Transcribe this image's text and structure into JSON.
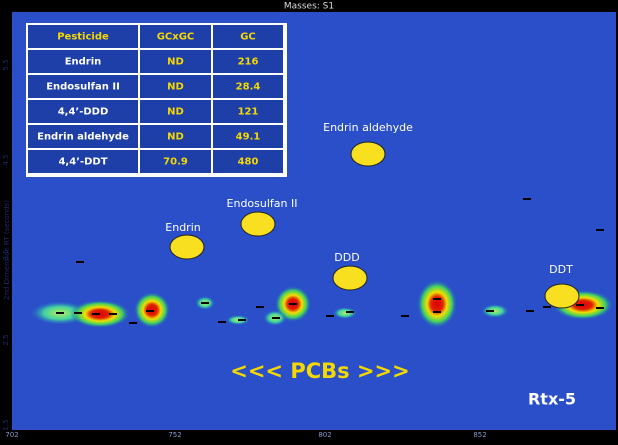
{
  "header": {
    "title": "Masses: S1"
  },
  "table": {
    "columns": [
      "Pesticide",
      "GCxGC",
      "GC"
    ],
    "rows": [
      [
        "Endrin",
        "ND",
        "216"
      ],
      [
        "Endosulfan II",
        "ND",
        "28.4"
      ],
      [
        "4,4’-DDD",
        "ND",
        "121"
      ],
      [
        "Endrin aldehyde",
        "ND",
        "49.1"
      ],
      [
        "4,4’-DDT",
        "70.9",
        "480"
      ]
    ]
  },
  "annotations": [
    {
      "label": "Endrin aldehyde"
    },
    {
      "label": "Endosulfan II"
    },
    {
      "label": "Endrin"
    },
    {
      "label": "DDD"
    },
    {
      "label": "DDT"
    }
  ],
  "center_label": "<<< PCBs >>>",
  "column_label": "Rtx-5",
  "axes": {
    "y_title": "2nd Dimension RT (seconds)",
    "y_ticks": [
      "5.5",
      "4.5",
      "3.5",
      "2.5",
      "1.5"
    ],
    "x_ticks": [
      "702",
      "752",
      "802",
      "852"
    ]
  }
}
